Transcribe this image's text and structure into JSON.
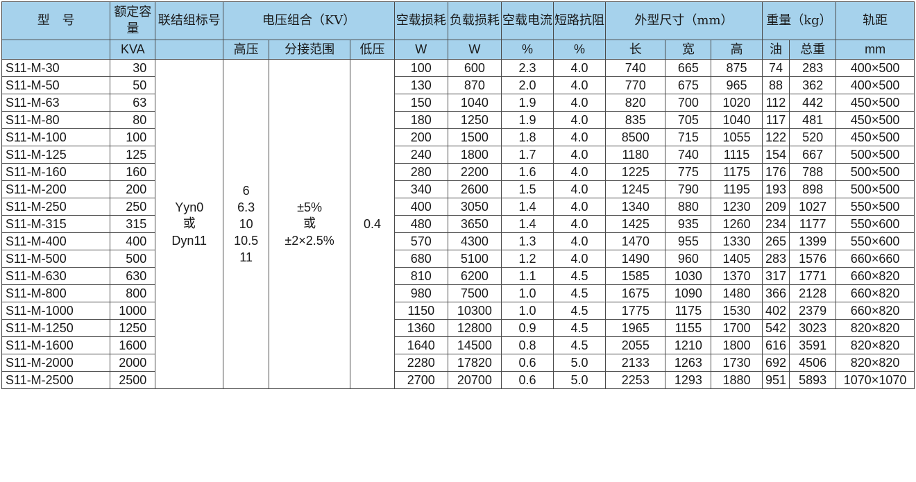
{
  "header": {
    "model": "型　号",
    "capacity": "额定容量",
    "connection": "联结组标号",
    "voltage_group": "电压组合（KV）",
    "no_load_loss": "空载损耗",
    "load_loss": "负载损耗",
    "no_load_current": "空载电流",
    "short_circuit_impedance": "短路抗阻",
    "dimensions": "外型尺寸（mm）",
    "weight": "重量（kg）",
    "gauge": "轨距"
  },
  "units": {
    "capacity": "KVA",
    "high_voltage": "高压",
    "tap_range": "分接范围",
    "low_voltage": "低压",
    "no_load_loss": "W",
    "load_loss": "W",
    "no_load_current": "%",
    "short_circuit_impedance": "%",
    "length": "长",
    "width": "宽",
    "height": "高",
    "oil": "油",
    "total_weight": "总重",
    "gauge": "mm"
  },
  "shared": {
    "connection_lines": [
      "Yyn0",
      "或",
      "Dyn11"
    ],
    "high_voltage_lines": [
      "6",
      "6.3",
      "10",
      "10.5",
      "11"
    ],
    "tap_range_lines": [
      "±5%",
      "或",
      "±2×2.5%"
    ],
    "low_voltage": "0.4"
  },
  "rows": [
    {
      "model": "S11-M-30",
      "capacity": "30",
      "p0": "100",
      "pk": "600",
      "i0": "2.3",
      "uk": "4.0",
      "l": "740",
      "w": "665",
      "h": "875",
      "oil": "74",
      "total": "283",
      "gauge": "400×500"
    },
    {
      "model": "S11-M-50",
      "capacity": "50",
      "p0": "130",
      "pk": "870",
      "i0": "2.0",
      "uk": "4.0",
      "l": "770",
      "w": "675",
      "h": "965",
      "oil": "88",
      "total": "362",
      "gauge": "400×500"
    },
    {
      "model": "S11-M-63",
      "capacity": "63",
      "p0": "150",
      "pk": "1040",
      "i0": "1.9",
      "uk": "4.0",
      "l": "820",
      "w": "700",
      "h": "1020",
      "oil": "112",
      "total": "442",
      "gauge": "450×500"
    },
    {
      "model": "S11-M-80",
      "capacity": "80",
      "p0": "180",
      "pk": "1250",
      "i0": "1.9",
      "uk": "4.0",
      "l": "835",
      "w": "705",
      "h": "1040",
      "oil": "117",
      "total": "481",
      "gauge": "450×500"
    },
    {
      "model": "S11-M-100",
      "capacity": "100",
      "p0": "200",
      "pk": "1500",
      "i0": "1.8",
      "uk": "4.0",
      "l": "8500",
      "w": "715",
      "h": "1055",
      "oil": "122",
      "total": "520",
      "gauge": "450×500"
    },
    {
      "model": "S11-M-125",
      "capacity": "125",
      "p0": "240",
      "pk": "1800",
      "i0": "1.7",
      "uk": "4.0",
      "l": "1180",
      "w": "740",
      "h": "1115",
      "oil": "154",
      "total": "667",
      "gauge": "500×500"
    },
    {
      "model": "S11-M-160",
      "capacity": "160",
      "p0": "280",
      "pk": "2200",
      "i0": "1.6",
      "uk": "4.0",
      "l": "1225",
      "w": "775",
      "h": "1175",
      "oil": "176",
      "total": "788",
      "gauge": "500×500"
    },
    {
      "model": "S11-M-200",
      "capacity": "200",
      "p0": "340",
      "pk": "2600",
      "i0": "1.5",
      "uk": "4.0",
      "l": "1245",
      "w": "790",
      "h": "1195",
      "oil": "193",
      "total": "898",
      "gauge": "500×500"
    },
    {
      "model": "S11-M-250",
      "capacity": "250",
      "p0": "400",
      "pk": "3050",
      "i0": "1.4",
      "uk": "4.0",
      "l": "1340",
      "w": "880",
      "h": "1230",
      "oil": "209",
      "total": "1027",
      "gauge": "550×500"
    },
    {
      "model": "S11-M-315",
      "capacity": "315",
      "p0": "480",
      "pk": "3650",
      "i0": "1.4",
      "uk": "4.0",
      "l": "1425",
      "w": "935",
      "h": "1260",
      "oil": "234",
      "total": "1177",
      "gauge": "550×600"
    },
    {
      "model": "S11-M-400",
      "capacity": "400",
      "p0": "570",
      "pk": "4300",
      "i0": "1.3",
      "uk": "4.0",
      "l": "1470",
      "w": "955",
      "h": "1330",
      "oil": "265",
      "total": "1399",
      "gauge": "550×600"
    },
    {
      "model": "S11-M-500",
      "capacity": "500",
      "p0": "680",
      "pk": "5100",
      "i0": "1.2",
      "uk": "4.0",
      "l": "1490",
      "w": "960",
      "h": "1405",
      "oil": "283",
      "total": "1576",
      "gauge": "660×660"
    },
    {
      "model": "S11-M-630",
      "capacity": "630",
      "p0": "810",
      "pk": "6200",
      "i0": "1.1",
      "uk": "4.5",
      "l": "1585",
      "w": "1030",
      "h": "1370",
      "oil": "317",
      "total": "1771",
      "gauge": "660×820"
    },
    {
      "model": "S11-M-800",
      "capacity": "800",
      "p0": "980",
      "pk": "7500",
      "i0": "1.0",
      "uk": "4.5",
      "l": "1675",
      "w": "1090",
      "h": "1480",
      "oil": "366",
      "total": "2128",
      "gauge": "660×820"
    },
    {
      "model": "S11-M-1000",
      "capacity": "1000",
      "p0": "1150",
      "pk": "10300",
      "i0": "1.0",
      "uk": "4.5",
      "l": "1775",
      "w": "1175",
      "h": "1530",
      "oil": "402",
      "total": "2379",
      "gauge": "660×820"
    },
    {
      "model": "S11-M-1250",
      "capacity": "1250",
      "p0": "1360",
      "pk": "12800",
      "i0": "0.9",
      "uk": "4.5",
      "l": "1965",
      "w": "1155",
      "h": "1700",
      "oil": "542",
      "total": "3023",
      "gauge": "820×820"
    },
    {
      "model": "S11-M-1600",
      "capacity": "1600",
      "p0": "1640",
      "pk": "14500",
      "i0": "0.8",
      "uk": "4.5",
      "l": "2055",
      "w": "1210",
      "h": "1800",
      "oil": "616",
      "total": "3591",
      "gauge": "820×820"
    },
    {
      "model": "S11-M-2000",
      "capacity": "2000",
      "p0": "2280",
      "pk": "17820",
      "i0": "0.6",
      "uk": "5.0",
      "l": "2133",
      "w": "1263",
      "h": "1730",
      "oil": "692",
      "total": "4506",
      "gauge": "820×820"
    },
    {
      "model": "S11-M-2500",
      "capacity": "2500",
      "p0": "2700",
      "pk": "20700",
      "i0": "0.6",
      "uk": "5.0",
      "l": "2253",
      "w": "1293",
      "h": "1880",
      "oil": "951",
      "total": "5893",
      "gauge": "1070×1070"
    }
  ],
  "colors": {
    "header_background": "#a6d2ec",
    "border": "#4a4a4a",
    "text": "#1a1a1a"
  }
}
